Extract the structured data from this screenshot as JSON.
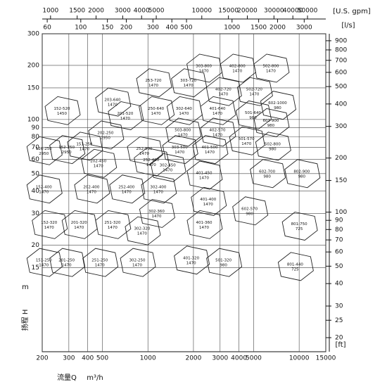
{
  "chart_data": {
    "type": "pump-selection",
    "x_label": "流量Q",
    "x_unit": "m³/h",
    "y_label": "扬程 H",
    "y_unit": "m",
    "x2_unit": "[U.S. gpm]",
    "x3_unit": "[l/s]",
    "y2_unit": "[ft]",
    "xlim": [
      200,
      15000
    ],
    "xticks": [
      200,
      300,
      400,
      500,
      1000,
      2000,
      3000,
      4000,
      5000,
      10000,
      15000
    ],
    "ylim": [
      5.1,
      300
    ],
    "yticks": [
      300,
      200,
      150,
      100,
      90,
      80,
      70,
      60,
      50,
      40,
      30,
      20,
      15
    ],
    "x2lim": [
      881,
      66040
    ],
    "x2ticks": [
      1000,
      1500,
      2000,
      3000,
      4000,
      5000,
      10000,
      15000,
      20000,
      30000,
      40000,
      50000
    ],
    "x3lim": [
      55.6,
      4167
    ],
    "x3ticks": [
      60,
      100,
      150,
      200,
      300,
      400,
      500,
      1000,
      1500,
      2000,
      3000
    ],
    "y2lim": [
      16.7,
      984
    ],
    "y2ticks": [
      900,
      800,
      700,
      600,
      500,
      400,
      300,
      200,
      150,
      100,
      90,
      80,
      70,
      60,
      50,
      40,
      30,
      25,
      20
    ],
    "grid": true,
    "color": "#222222",
    "pumps": [
      {
        "name": "152-520",
        "rpm": 1450,
        "q": 270,
        "h": 112
      },
      {
        "name": "203-640",
        "rpm": 1470,
        "q": 583,
        "h": 125
      },
      {
        "name": "201-520",
        "rpm": 1470,
        "q": 707,
        "h": 105
      },
      {
        "name": "253-720",
        "rpm": 1470,
        "q": 1087,
        "h": 160
      },
      {
        "name": "303-720",
        "rpm": 1470,
        "q": 1850,
        "h": 160
      },
      {
        "name": "303-800",
        "rpm": 1470,
        "q": 2340,
        "h": 193
      },
      {
        "name": "402-800",
        "rpm": 1470,
        "q": 3900,
        "h": 193
      },
      {
        "name": "502-800",
        "rpm": 1470,
        "q": 6500,
        "h": 193
      },
      {
        "name": "250-640",
        "rpm": 1470,
        "q": 1130,
        "h": 112
      },
      {
        "name": "302-640",
        "rpm": 1470,
        "q": 1730,
        "h": 112
      },
      {
        "name": "401-640",
        "rpm": 1470,
        "q": 2880,
        "h": 112
      },
      {
        "name": "402-720",
        "rpm": 1470,
        "q": 3150,
        "h": 143
      },
      {
        "name": "502-720",
        "rpm": 1470,
        "q": 5050,
        "h": 143
      },
      {
        "name": "501-640",
        "rpm": 980,
        "q": 4950,
        "h": 106
      },
      {
        "name": "602-1000",
        "rpm": 980,
        "q": 7200,
        "h": 120
      },
      {
        "name": "602-900",
        "rpm": 980,
        "q": 6500,
        "h": 96
      },
      {
        "name": "503-800",
        "rpm": 1470,
        "q": 1700,
        "h": 85
      },
      {
        "name": "402-570",
        "rpm": 1470,
        "q": 2880,
        "h": 85
      },
      {
        "name": "501-570",
        "rpm": 1470,
        "q": 4480,
        "h": 76
      },
      {
        "name": "502-800",
        "rpm": 980,
        "q": 6670,
        "h": 71
      },
      {
        "name": "126-250",
        "rpm": 2950,
        "q": 205,
        "h": 67
      },
      {
        "name": "152-250",
        "rpm": 2950,
        "q": 290,
        "h": 68
      },
      {
        "name": "151-250",
        "rpm": 1470,
        "q": 380,
        "h": 71
      },
      {
        "name": "202-250",
        "rpm": 2950,
        "q": 524,
        "h": 82
      },
      {
        "name": "252-500",
        "rpm": 1470,
        "q": 946,
        "h": 67
      },
      {
        "name": "303-500",
        "rpm": 1470,
        "q": 1620,
        "h": 68
      },
      {
        "name": "401-500",
        "rpm": 1470,
        "q": 2560,
        "h": 68
      },
      {
        "name": "202-450",
        "rpm": 1470,
        "q": 470,
        "h": 57
      },
      {
        "name": "252-400",
        "rpm": 1470,
        "q": 1050,
        "h": 58
      },
      {
        "name": "302-450",
        "rpm": 1470,
        "q": 1350,
        "h": 54
      },
      {
        "name": "401-450",
        "rpm": 1470,
        "q": 2350,
        "h": 49
      },
      {
        "name": "602-700",
        "rpm": 980,
        "q": 6140,
        "h": 50
      },
      {
        "name": "802-900",
        "rpm": 980,
        "q": 10400,
        "h": 50
      },
      {
        "name": "152-400",
        "rpm": 1470,
        "q": 205,
        "h": 41
      },
      {
        "name": "202-400",
        "rpm": 1470,
        "q": 423,
        "h": 41
      },
      {
        "name": "252-400",
        "rpm": 1470,
        "q": 722,
        "h": 41
      },
      {
        "name": "302-400",
        "rpm": 1470,
        "q": 1170,
        "h": 41
      },
      {
        "name": "401-400",
        "rpm": 1470,
        "q": 2500,
        "h": 35
      },
      {
        "name": "602-570",
        "rpm": 980,
        "q": 4700,
        "h": 31
      },
      {
        "name": "302-360",
        "rpm": 1470,
        "q": 1140,
        "h": 30
      },
      {
        "name": "152-320",
        "rpm": 1470,
        "q": 222,
        "h": 26
      },
      {
        "name": "201-320",
        "rpm": 1470,
        "q": 350,
        "h": 26
      },
      {
        "name": "251-320",
        "rpm": 1470,
        "q": 583,
        "h": 26
      },
      {
        "name": "302-320",
        "rpm": 1470,
        "q": 915,
        "h": 24
      },
      {
        "name": "401-360",
        "rpm": 1470,
        "q": 2350,
        "h": 26
      },
      {
        "name": "801-750",
        "rpm": 725,
        "q": 10000,
        "h": 25.5
      },
      {
        "name": "151-250",
        "rpm": 1470,
        "q": 205,
        "h": 16
      },
      {
        "name": "201-250",
        "rpm": 1470,
        "q": 290,
        "h": 16
      },
      {
        "name": "251-250",
        "rpm": 1470,
        "q": 480,
        "h": 16
      },
      {
        "name": "302-250",
        "rpm": 1470,
        "q": 850,
        "h": 16
      },
      {
        "name": "401-320",
        "rpm": 1470,
        "q": 1930,
        "h": 16.5
      },
      {
        "name": "501-320",
        "rpm": 980,
        "q": 3160,
        "h": 16
      },
      {
        "name": "801-440",
        "rpm": 725,
        "q": 9400,
        "h": 15.2
      }
    ]
  }
}
